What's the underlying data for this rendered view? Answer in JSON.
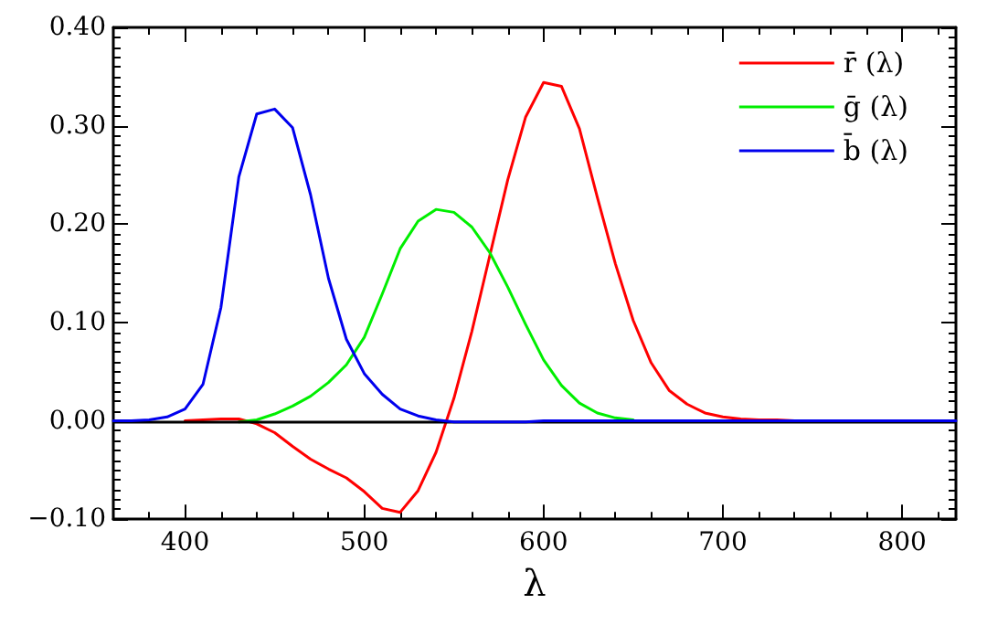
{
  "chart_data": {
    "type": "line",
    "xlabel": "λ",
    "x": [
      360,
      370,
      380,
      390,
      400,
      410,
      420,
      430,
      440,
      450,
      460,
      470,
      480,
      490,
      500,
      510,
      520,
      530,
      540,
      550,
      560,
      570,
      580,
      590,
      600,
      610,
      620,
      630,
      640,
      650,
      660,
      670,
      680,
      690,
      700,
      710,
      720,
      730,
      740,
      750,
      760,
      770,
      780,
      790,
      800,
      810,
      820,
      830
    ],
    "series": [
      {
        "name": "r̄ (λ)",
        "color": "#ff0000",
        "values": [
          null,
          null,
          null,
          null,
          0,
          0.001,
          0.002,
          0.002,
          -0.003,
          -0.012,
          -0.026,
          -0.039,
          -0.049,
          -0.058,
          -0.072,
          -0.089,
          -0.093,
          -0.071,
          -0.032,
          0.023,
          0.091,
          0.168,
          0.245,
          0.309,
          0.344,
          0.34,
          0.297,
          0.227,
          0.16,
          0.102,
          0.059,
          0.031,
          0.017,
          0.008,
          0.004,
          0.002,
          0.001,
          0.001,
          0,
          null,
          null,
          null,
          null,
          null,
          null,
          null,
          null,
          null
        ]
      },
      {
        "name": "ḡ (λ)",
        "color": "#00ee00",
        "values": [
          null,
          null,
          null,
          null,
          null,
          null,
          null,
          -0.001,
          0.001,
          0.007,
          0.015,
          0.025,
          0.039,
          0.057,
          0.085,
          0.129,
          0.175,
          0.203,
          0.215,
          0.212,
          0.197,
          0.171,
          0.136,
          0.098,
          0.062,
          0.036,
          0.018,
          0.008,
          0.003,
          0.001,
          null,
          null,
          null,
          null,
          null,
          null,
          null,
          null,
          null,
          null,
          null,
          null,
          null,
          null,
          null,
          null,
          null,
          null
        ]
      },
      {
        "name": "b̄ (λ)",
        "color": "#0000ee",
        "values": [
          0,
          0,
          0.001,
          0.004,
          0.012,
          0.037,
          0.115,
          0.248,
          0.312,
          0.317,
          0.298,
          0.23,
          0.145,
          0.083,
          0.048,
          0.027,
          0.012,
          0.005,
          0.001,
          -0.001,
          -0.001,
          -0.001,
          -0.001,
          -0.001,
          0,
          0,
          0,
          0,
          0,
          0,
          0,
          0,
          0,
          0,
          0,
          0,
          0,
          0,
          0,
          0,
          0,
          0,
          0,
          0,
          0,
          0,
          0,
          0
        ]
      }
    ],
    "xlim": [
      360,
      830
    ],
    "xticks": [
      400,
      500,
      600,
      700,
      800
    ],
    "ylim": [
      -0.1,
      0.4
    ],
    "yticks": [
      {
        "value": -0.1,
        "label": "−0.10"
      },
      {
        "value": 0,
        "label": "0.00"
      },
      {
        "value": 0.1,
        "label": "0.10"
      },
      {
        "value": 0.2,
        "label": "0.20"
      },
      {
        "value": 0.3,
        "label": "0.30"
      },
      {
        "value": 0.4,
        "label": "0.40"
      }
    ],
    "ref_lines": [
      {
        "axis": "y",
        "value": 0,
        "color": "#000000"
      }
    ],
    "grid": false,
    "legend": "top right",
    "line_style": "solid",
    "marker": "none"
  }
}
